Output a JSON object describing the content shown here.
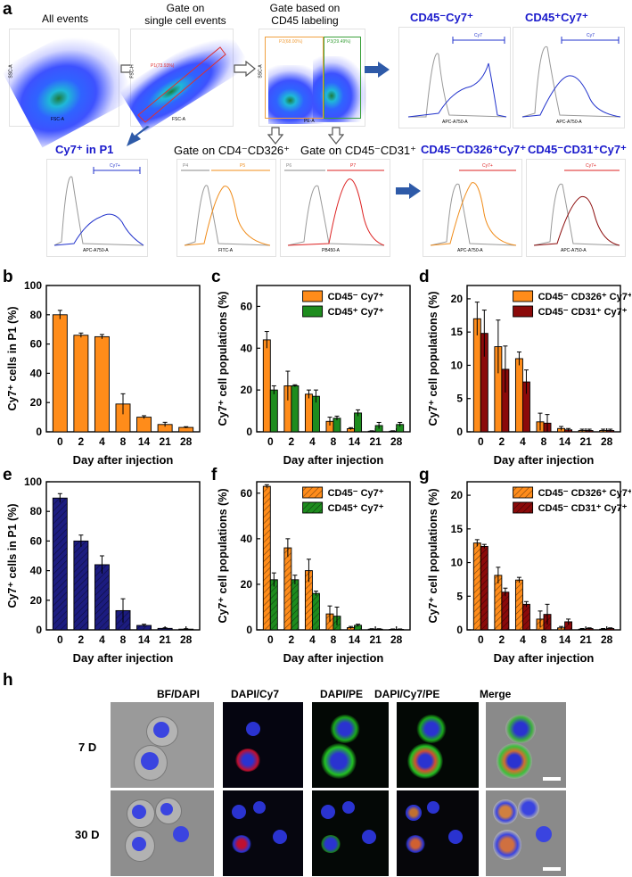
{
  "panel_labels": {
    "a": "a",
    "b": "b",
    "c": "c",
    "d": "d",
    "e": "e",
    "f": "f",
    "g": "g",
    "h": "h"
  },
  "flow": {
    "titles": {
      "all_events": "All events",
      "gate_single": "Gate on\nsingle cell events",
      "gate_cd45": "Gate based on\nCD45 labeling",
      "cd45neg_cy7": "CD45⁻Cy7⁺",
      "cd45pos_cy7": "CD45⁺Cy7⁺",
      "cy7_p1": "Cy7⁺ in P1",
      "gate_cd4_cd326": "Gate on CD4⁻CD326⁺",
      "gate_cd45_cd31": "Gate on CD45⁻CD31⁺",
      "cd326_cy7": "CD45⁻CD326⁺Cy7⁺",
      "cd31_cy7": "CD45⁻CD31⁺Cy7⁺"
    },
    "plot_text": {
      "p1": "P1(73.93%)",
      "p2": "P2(68.00%)",
      "p3": "P3(29.49%)",
      "fsc_a": "FSC-A",
      "ssc_a": "SSC-A",
      "fsc_h": "FSC-H",
      "pe_a": "PE-A",
      "apc": "APC-A750-A",
      "fitc": "FITC-A",
      "pb450": "PB450-A",
      "count": "Count",
      "cy7_gate": "Cy7",
      "cy7p_gate": "Cy7+",
      "p4": "P4",
      "p5": "P5",
      "p6": "P6",
      "p7": "P7"
    }
  },
  "colors": {
    "orange": "#FF8C1A",
    "green": "#1E8C1E",
    "darkred": "#8B0A0A",
    "navy": "#1C1C80",
    "flowblue": "#2233cc",
    "flowred": "#dd2222"
  },
  "chart_data": [
    {
      "id": "b",
      "type": "bar",
      "title": "",
      "xlabel": "Day after injection",
      "ylabel": "Cy7⁺ cells in P1 (%)",
      "categories": [
        "0",
        "2",
        "4",
        "8",
        "14",
        "21",
        "28"
      ],
      "ylim": [
        0,
        100
      ],
      "yticks": [
        0,
        20,
        40,
        60,
        80,
        100
      ],
      "series": [
        {
          "name": "Cy7+ in P1",
          "color": "#FF8C1A",
          "hatched": false,
          "values": [
            80,
            66,
            65,
            19,
            10,
            5,
            3
          ],
          "errors": [
            3,
            1.5,
            1.5,
            7,
            1,
            1.5,
            0.5
          ]
        }
      ]
    },
    {
      "id": "c",
      "type": "bar",
      "title": "",
      "xlabel": "Day after injection",
      "ylabel": "Cy7⁺ cell populations (%)",
      "categories": [
        "0",
        "2",
        "4",
        "8",
        "14",
        "21",
        "28"
      ],
      "ylim": [
        0,
        70
      ],
      "yticks": [
        0,
        20,
        40,
        60
      ],
      "legend_position": "top-right",
      "series": [
        {
          "name": "CD45⁻ Cy7⁺",
          "color": "#FF8C1A",
          "hatched": false,
          "values": [
            44,
            22,
            18,
            5,
            1.5,
            0.3,
            0.3
          ],
          "errors": [
            4,
            7,
            2,
            2,
            0.5,
            0.2,
            0.2
          ]
        },
        {
          "name": "CD45⁺ Cy7⁺",
          "color": "#1E8C1E",
          "hatched": false,
          "values": [
            20,
            22,
            17,
            6.5,
            9,
            3,
            3.5
          ],
          "errors": [
            2,
            0.5,
            3,
            1,
            1.5,
            1.5,
            1
          ]
        }
      ]
    },
    {
      "id": "d",
      "type": "bar",
      "title": "",
      "xlabel": "Day after injection",
      "ylabel": "Cy7⁺ cell populations (%)",
      "categories": [
        "0",
        "2",
        "4",
        "8",
        "14",
        "21",
        "28"
      ],
      "ylim": [
        0,
        22
      ],
      "yticks": [
        0,
        5,
        10,
        15,
        20
      ],
      "legend_position": "top-right",
      "series": [
        {
          "name": "CD45⁻ CD326⁺ Cy7⁺",
          "color": "#FF8C1A",
          "hatched": false,
          "values": [
            17,
            12.8,
            11,
            1.5,
            0.5,
            0.2,
            0.2
          ],
          "errors": [
            2.5,
            4,
            1,
            1.3,
            0.3,
            0.2,
            0.2
          ]
        },
        {
          "name": "CD45⁻ CD31⁺ Cy7⁺",
          "color": "#8B0A0A",
          "hatched": false,
          "values": [
            14.8,
            9.4,
            7.5,
            1.3,
            0.3,
            0.2,
            0.2
          ],
          "errors": [
            3.5,
            3.5,
            1.8,
            1.3,
            0.2,
            0.2,
            0.2
          ]
        }
      ]
    },
    {
      "id": "e",
      "type": "bar",
      "title": "",
      "xlabel": "Day after injection",
      "ylabel": "Cy7⁺ cells in P1 (%)",
      "categories": [
        "0",
        "2",
        "4",
        "8",
        "14",
        "21",
        "28"
      ],
      "ylim": [
        0,
        100
      ],
      "yticks": [
        0,
        20,
        40,
        60,
        80,
        100
      ],
      "series": [
        {
          "name": "Cy7+ in P1",
          "color": "#1C1C80",
          "hatched": true,
          "values": [
            89,
            60,
            44,
            13,
            3,
            1,
            0.5
          ],
          "errors": [
            3,
            4,
            6,
            8,
            0.8,
            0.4,
            0.3
          ]
        }
      ]
    },
    {
      "id": "f",
      "type": "bar",
      "title": "",
      "xlabel": "Day after injection",
      "ylabel": "Cy7⁺ cell populations (%)",
      "categories": [
        "0",
        "2",
        "4",
        "8",
        "14",
        "21",
        "28"
      ],
      "ylim": [
        0,
        65
      ],
      "yticks": [
        0,
        20,
        40,
        60
      ],
      "legend_position": "top-right",
      "series": [
        {
          "name": "CD45⁻ Cy7⁺",
          "color": "#FF8C1A",
          "hatched": true,
          "values": [
            63,
            36,
            26,
            7,
            1,
            0.3,
            0.2
          ],
          "errors": [
            0.7,
            4,
            5,
            3.5,
            0.5,
            0.2,
            0.2
          ]
        },
        {
          "name": "CD45⁺ Cy7⁺",
          "color": "#1E8C1E",
          "hatched": true,
          "values": [
            22,
            22,
            16,
            6,
            2,
            0.3,
            0.2
          ],
          "errors": [
            3,
            2,
            1,
            4,
            0.5,
            0.2,
            0.2
          ]
        }
      ]
    },
    {
      "id": "g",
      "type": "bar",
      "title": "",
      "xlabel": "Day after injection",
      "ylabel": "Cy7⁺ cell populations (%)",
      "categories": [
        "0",
        "2",
        "4",
        "8",
        "14",
        "21",
        "28"
      ],
      "ylim": [
        0,
        22
      ],
      "yticks": [
        0,
        5,
        10,
        15,
        20
      ],
      "legend_position": "top-right",
      "series": [
        {
          "name": "CD45⁻ CD326⁺ Cy7⁺",
          "color": "#FF8C1A",
          "hatched": true,
          "values": [
            12.9,
            8.1,
            7.4,
            1.6,
            0.3,
            0.1,
            0.1
          ],
          "errors": [
            0.5,
            1.2,
            0.4,
            1.2,
            0.2,
            0.1,
            0.1
          ]
        },
        {
          "name": "CD45⁻ CD31⁺ Cy7⁺",
          "color": "#8B0A0A",
          "hatched": true,
          "values": [
            12.4,
            5.6,
            3.8,
            2.3,
            1.2,
            0.2,
            0.2
          ],
          "errors": [
            0.3,
            0.6,
            0.4,
            1.5,
            0.4,
            0.1,
            0.1
          ]
        }
      ]
    }
  ],
  "micrographs": {
    "columns": [
      "BF/DAPI",
      "DAPI/Cy7",
      "DAPI/PE",
      "DAPI/Cy7/PE",
      "Merge"
    ],
    "rows": [
      "7 D",
      "30 D"
    ]
  }
}
